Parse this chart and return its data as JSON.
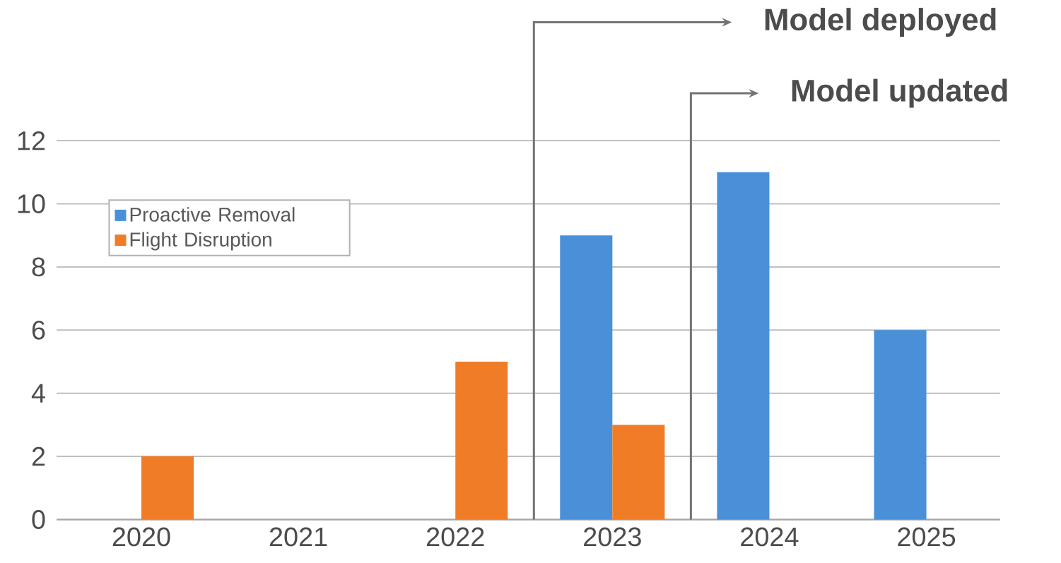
{
  "chart_data": {
    "type": "bar",
    "categories": [
      "2020",
      "2021",
      "2022",
      "2023",
      "2024",
      "2025"
    ],
    "series": [
      {
        "name": "Proactive Removal",
        "color": "#4a90d9",
        "values": [
          0,
          0,
          0,
          9,
          11,
          6
        ]
      },
      {
        "name": "Flight Disruption",
        "color": "#f07c28",
        "values": [
          2,
          0,
          5,
          3,
          0,
          0
        ]
      }
    ],
    "ylim": [
      0,
      12
    ],
    "yticks": [
      0,
      2,
      4,
      6,
      8,
      10,
      12
    ],
    "grid": "y",
    "legend": "top left",
    "annotations": [
      "Model deployed",
      "Model updated"
    ]
  }
}
